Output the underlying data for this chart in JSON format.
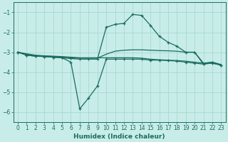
{
  "xlabel": "Humidex (Indice chaleur)",
  "background_color": "#c8ede8",
  "grid_color": "#a8d8d0",
  "line_color": "#1a6b60",
  "xlim": [
    -0.5,
    23.5
  ],
  "ylim": [
    -6.5,
    -0.5
  ],
  "xticks": [
    0,
    1,
    2,
    3,
    4,
    5,
    6,
    7,
    8,
    9,
    10,
    11,
    12,
    13,
    14,
    15,
    16,
    17,
    18,
    19,
    20,
    21,
    22,
    23
  ],
  "yticks": [
    -6,
    -5,
    -4,
    -3,
    -2,
    -1
  ],
  "curveA_x": [
    0,
    1,
    2,
    3,
    4,
    5,
    6,
    7,
    8,
    9,
    10,
    11,
    12,
    13,
    14,
    15,
    16,
    17,
    18,
    19,
    20,
    21,
    22,
    23
  ],
  "curveA_y": [
    -3.0,
    -3.15,
    -3.2,
    -3.22,
    -3.25,
    -3.28,
    -3.32,
    -3.35,
    -3.35,
    -3.35,
    -1.75,
    -1.6,
    -1.55,
    -1.1,
    -1.15,
    -1.65,
    -2.2,
    -2.5,
    -2.7,
    -3.0,
    -3.0,
    -3.6,
    -3.5,
    -3.65
  ],
  "curveB_x": [
    0,
    1,
    2,
    3,
    4,
    5,
    6,
    7,
    8,
    9,
    10,
    11,
    12,
    13,
    14,
    15,
    16,
    17,
    18,
    19,
    20,
    21,
    22,
    23
  ],
  "curveB_y": [
    -3.0,
    -3.15,
    -3.2,
    -3.22,
    -3.25,
    -3.28,
    -3.5,
    -5.85,
    -5.3,
    -4.7,
    -3.35,
    -3.35,
    -3.35,
    -3.35,
    -3.35,
    -3.4,
    -3.4,
    -3.42,
    -3.45,
    -3.5,
    -3.55,
    -3.6,
    -3.55,
    -3.65
  ],
  "curveC_x": [
    0,
    1,
    2,
    3,
    4,
    5,
    6,
    7,
    8,
    9,
    10,
    11,
    12,
    13,
    14,
    15,
    16,
    17,
    18,
    19,
    20,
    21,
    22,
    23
  ],
  "curveC_y": [
    -3.0,
    -3.1,
    -3.18,
    -3.2,
    -3.22,
    -3.25,
    -3.28,
    -3.3,
    -3.3,
    -3.3,
    -3.1,
    -2.95,
    -2.9,
    -2.88,
    -2.88,
    -2.9,
    -2.92,
    -2.93,
    -2.95,
    -3.0,
    -3.0,
    -3.55,
    -3.5,
    -3.62
  ],
  "curveD_x": [
    0,
    1,
    2,
    3,
    4,
    5,
    6,
    7,
    8,
    9,
    10,
    11,
    12,
    13,
    14,
    15,
    16,
    17,
    18,
    19,
    20,
    21,
    22,
    23
  ],
  "curveD_y": [
    -3.0,
    -3.08,
    -3.15,
    -3.18,
    -3.2,
    -3.22,
    -3.25,
    -3.28,
    -3.28,
    -3.28,
    -3.28,
    -3.28,
    -3.28,
    -3.28,
    -3.3,
    -3.35,
    -3.38,
    -3.4,
    -3.42,
    -3.45,
    -3.5,
    -3.55,
    -3.55,
    -3.65
  ]
}
